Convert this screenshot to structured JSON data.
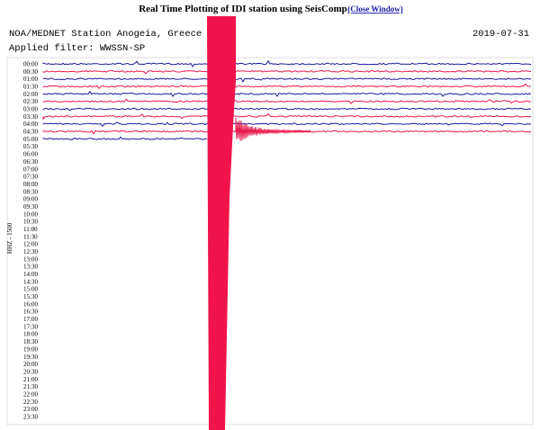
{
  "header": {
    "title": "Real Time Plotting of IDI station using SeisComp",
    "link": "(Close Window)",
    "station": "NOA/MEDNET Station Anogeia, Greece",
    "date": "2019-07-31",
    "filter": "Applied filter: WWSSN-SP"
  },
  "plot": {
    "channel": "HHZ - 1500",
    "rows": [
      "00:00",
      "00:30",
      "01:00",
      "01:30",
      "02:00",
      "02:30",
      "03:00",
      "03:30",
      "04:00",
      "04:30",
      "05:00",
      "05:30",
      "06:00",
      "06:30",
      "07:00",
      "07:30",
      "08:00",
      "08:30",
      "09:00",
      "09:30",
      "10:00",
      "10:30",
      "11:00",
      "11:30",
      "12:00",
      "12:30",
      "13:00",
      "13:30",
      "14:00",
      "14:30",
      "15:00",
      "15:30",
      "16:00",
      "16:30",
      "17:00",
      "17:30",
      "18:00",
      "18:30",
      "19:00",
      "19:30",
      "20:00",
      "20:30",
      "21:00",
      "21:30",
      "22:00",
      "22:30",
      "23:00",
      "23:30"
    ]
  }
}
